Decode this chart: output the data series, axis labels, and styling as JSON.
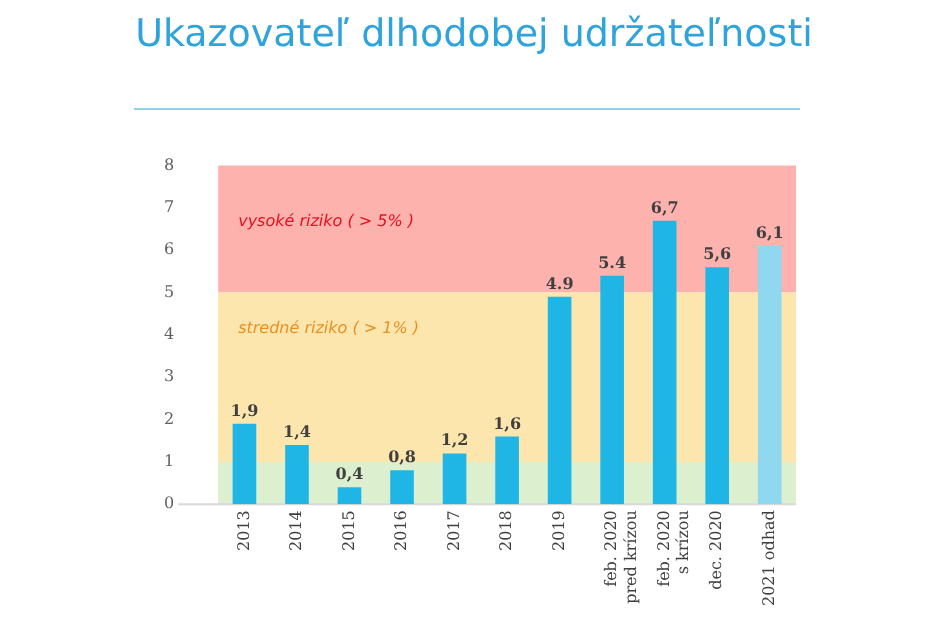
{
  "chart_data": {
    "type": "bar",
    "title": "Ukazovateľ dlhodobej udržateľnosti",
    "categories": [
      "2013",
      "2014",
      "2015",
      "2016",
      "2017",
      "2018",
      "2019",
      "feb. 2020\npred krízou",
      "feb. 2020\ns krízou",
      "dec. 2020",
      "2021 odhad"
    ],
    "values": [
      1.9,
      1.4,
      0.4,
      0.8,
      1.2,
      1.6,
      4.9,
      5.4,
      6.7,
      5.6,
      6.1
    ],
    "colors": [
      "#1fb6e6",
      "#1fb6e6",
      "#1fb6e6",
      "#1fb6e6",
      "#1fb6e6",
      "#1fb6e6",
      "#1fb6e6",
      "#1fb6e6",
      "#1fb6e6",
      "#1fb6e6",
      "#8fd8f0"
    ],
    "value_labels": [
      "1,9",
      "1,4",
      "0,4",
      "0,8",
      "1,2",
      "1,6",
      "4.9",
      "5.4",
      "6,7",
      "5,6",
      "6,1"
    ],
    "ylim": [
      0,
      8
    ],
    "yticks": [
      0,
      1,
      2,
      3,
      4,
      5,
      6,
      7,
      8
    ],
    "grid": false,
    "bands": [
      {
        "axis": "y",
        "from": 5,
        "to": 8,
        "label": "vysoké riziko ( > 5% )",
        "color": "#fdb2ae"
      },
      {
        "axis": "y",
        "from": 1,
        "to": 5,
        "label": "stredné riziko ( > 1% )",
        "color": "#fde6ae"
      },
      {
        "axis": "y",
        "from": 0,
        "to": 1,
        "color": "#dcefcf"
      }
    ]
  }
}
